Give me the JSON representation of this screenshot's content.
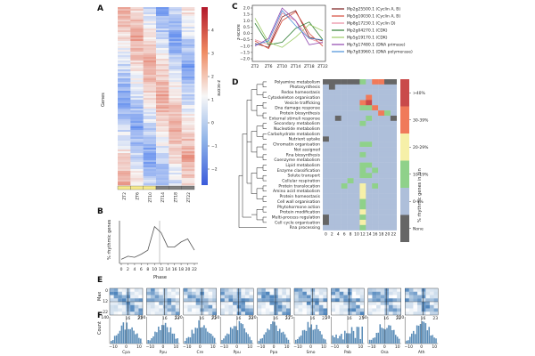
{
  "panels": {
    "A": "A",
    "B": "B",
    "C": "C",
    "D": "D",
    "E": "E",
    "F": "F"
  },
  "colors": {
    "heat_high": "#c0272d",
    "heat_low": "#3b5bdb",
    "mid": "#f7f7f7",
    "yellow": "#f5e98a",
    "grey": "#7f7f7f",
    "none": "#666666",
    "bin0": "#aebfda",
    "bin1": "#8fd18a",
    "bin2": "#f6f0a8",
    "bin3": "#f07a5a",
    "bin4": "#c94a4a",
    "line": "#555555",
    "hist": "#5b8db8",
    "mapblue": "#2f6fb0"
  },
  "panelA": {
    "ylabel": "Genes",
    "colorbar_label": "z-score",
    "colorbar_ticks": [
      "4",
      "3",
      "2",
      "1",
      "0",
      "−1",
      "−2"
    ],
    "xticks": [
      "ZT2",
      "ZT6",
      "ZT10",
      "ZT14",
      "ZT18",
      "ZT22"
    ]
  },
  "panelB": {
    "ylabel": "% rhythmic genes",
    "xlabel": "Phase",
    "xticks": [
      "0",
      "2",
      "4",
      "6",
      "8",
      "10",
      "12",
      "14",
      "16",
      "18",
      "20",
      "22"
    ],
    "chart_data": {
      "type": "line",
      "x": [
        0,
        2,
        4,
        6,
        8,
        10,
        12,
        14,
        16,
        18,
        20,
        22
      ],
      "values": [
        2.0,
        3.5,
        3.0,
        4.5,
        6.5,
        18,
        15,
        8,
        8,
        10.5,
        12,
        6.5
      ],
      "ylim": [
        0,
        20
      ],
      "title": "",
      "xlabel": "Phase",
      "ylabel": "% rhythmic genes"
    }
  },
  "panelC": {
    "ylabel": "z-score",
    "yticks": [
      "2.0",
      "1.5",
      "1.0",
      "0.5",
      "0.0",
      "−0.5",
      "−1.0",
      "−1.5",
      "−2.0"
    ],
    "xticks": [
      "ZT2",
      "ZT6",
      "ZT10",
      "ZT14",
      "ZT18",
      "ZT22"
    ],
    "chart_data": {
      "type": "line",
      "categories": [
        "ZT2",
        "ZT6",
        "ZT10",
        "ZT14",
        "ZT18",
        "ZT22"
      ],
      "ylim": [
        -2.0,
        2.0
      ],
      "series": [
        {
          "name": "Mp2g25500.1 (Cyclin A, B)",
          "color": "#7a1c1c",
          "values": [
            -0.8,
            -1.1,
            1.3,
            1.8,
            -0.3,
            -0.6
          ]
        },
        {
          "name": "Mp5g10030.1 (Cyclin A, B)",
          "color": "#d44a3a",
          "values": [
            -0.6,
            -1.2,
            1.0,
            1.7,
            0.0,
            -1.0
          ]
        },
        {
          "name": "Mp8g17230.1 (Cyclin D)",
          "color": "#e88aa0",
          "values": [
            -0.5,
            -0.9,
            1.6,
            1.0,
            -0.4,
            -0.8
          ]
        },
        {
          "name": "Mp2g04270.1 (CDK)",
          "color": "#2e7d32",
          "values": [
            0.8,
            -0.9,
            -0.7,
            0.4,
            0.9,
            -0.5
          ]
        },
        {
          "name": "Mp5g19170.1 (CDK)",
          "color": "#9ccc65",
          "values": [
            1.2,
            -0.7,
            -1.1,
            -0.3,
            0.7,
            0.2
          ]
        },
        {
          "name": "Mp7g17480.1 (DNA primase)",
          "color": "#8e44ad",
          "values": [
            -1.0,
            -0.4,
            2.0,
            1.0,
            -0.9,
            -0.7
          ]
        },
        {
          "name": "Mp7g03960.1 (DNA polymerase)",
          "color": "#4a90d9",
          "values": [
            -0.9,
            -0.6,
            1.8,
            0.6,
            -0.4,
            -0.5
          ]
        }
      ]
    }
  },
  "panelD": {
    "xticks": [
      "0",
      "2",
      "4",
      "6",
      "8",
      "10",
      "12",
      "14",
      "16",
      "18",
      "20",
      "22"
    ],
    "categories": [
      "Polyamine metabolism",
      "Photosynthesis",
      "Redox homeostasis",
      "Cytoskeleton organisation",
      "Vesicle trafficking",
      "Dna damage response",
      "Protein biosynthesis",
      "External stimuli response",
      "Secondary metabolism",
      "Nucleotide metabolism",
      "Carbohydrate metabolism",
      "Nutrient uptake",
      "Chromatin organisation",
      "Not assigned",
      "Rna biosynthesis",
      "Coenzyme metabolism",
      "Lipid metabolism",
      "Enzyme classification",
      "Solute transport",
      "Cellular respiration",
      "Protein translocation",
      "Amino acid metabolism",
      "Protein homeostasis",
      "Cell wall organisation",
      "Phytohormone action",
      "Protein modification",
      "Multi-process regulation",
      "Cell cycle organisation",
      "Rna processing"
    ],
    "legend": {
      "title": "% rhythmic genes in bin",
      "labels": [
        ">40%",
        "30-39%",
        "20-29%",
        "10-19%",
        "0-9%",
        "None"
      ]
    },
    "grid": [
      [
        5,
        5,
        5,
        5,
        5,
        5,
        1,
        0,
        3,
        3,
        5,
        5
      ],
      [
        0,
        5,
        0,
        0,
        0,
        0,
        0,
        0,
        0,
        0,
        0,
        0
      ],
      [
        0,
        0,
        0,
        0,
        0,
        0,
        0,
        0,
        0,
        0,
        0,
        0
      ],
      [
        0,
        0,
        0,
        0,
        0,
        0,
        0,
        3,
        0,
        0,
        0,
        0
      ],
      [
        0,
        0,
        0,
        0,
        0,
        0,
        3,
        4,
        0,
        0,
        0,
        0
      ],
      [
        0,
        0,
        0,
        0,
        0,
        0,
        1,
        1,
        3,
        0,
        0,
        0
      ],
      [
        0,
        0,
        0,
        0,
        0,
        0,
        0,
        0,
        0,
        3,
        1,
        0
      ],
      [
        0,
        0,
        5,
        0,
        0,
        0,
        0,
        1,
        0,
        0,
        0,
        5
      ],
      [
        0,
        0,
        0,
        0,
        0,
        0,
        1,
        0,
        0,
        0,
        0,
        0
      ],
      [
        0,
        0,
        0,
        0,
        0,
        0,
        0,
        0,
        0,
        0,
        0,
        0
      ],
      [
        0,
        0,
        0,
        0,
        0,
        0,
        0,
        0,
        0,
        0,
        0,
        0
      ],
      [
        5,
        0,
        0,
        0,
        0,
        0,
        0,
        0,
        0,
        0,
        0,
        0
      ],
      [
        0,
        0,
        0,
        0,
        0,
        0,
        1,
        1,
        0,
        0,
        0,
        0
      ],
      [
        0,
        0,
        0,
        0,
        0,
        0,
        0,
        0,
        0,
        0,
        0,
        0
      ],
      [
        0,
        0,
        0,
        0,
        0,
        0,
        1,
        0,
        0,
        0,
        0,
        0
      ],
      [
        0,
        0,
        0,
        0,
        0,
        0,
        0,
        0,
        0,
        0,
        0,
        0
      ],
      [
        0,
        0,
        0,
        0,
        0,
        0,
        1,
        1,
        0,
        0,
        0,
        0
      ],
      [
        0,
        0,
        0,
        0,
        0,
        0,
        1,
        0,
        1,
        0,
        0,
        0
      ],
      [
        0,
        0,
        0,
        0,
        0,
        0,
        1,
        1,
        0,
        0,
        0,
        0
      ],
      [
        0,
        0,
        0,
        0,
        1,
        0,
        0,
        0,
        0,
        0,
        0,
        0
      ],
      [
        0,
        0,
        0,
        1,
        0,
        0,
        2,
        0,
        1,
        0,
        0,
        0
      ],
      [
        0,
        0,
        0,
        0,
        0,
        0,
        2,
        0,
        0,
        0,
        0,
        0
      ],
      [
        0,
        0,
        0,
        0,
        0,
        0,
        2,
        0,
        0,
        0,
        0,
        0
      ],
      [
        0,
        0,
        0,
        0,
        0,
        0,
        1,
        0,
        0,
        0,
        0,
        0
      ],
      [
        0,
        0,
        0,
        0,
        0,
        0,
        1,
        0,
        0,
        0,
        0,
        0
      ],
      [
        0,
        0,
        0,
        0,
        0,
        0,
        2,
        0,
        0,
        0,
        0,
        0
      ],
      [
        5,
        0,
        0,
        0,
        0,
        0,
        1,
        0,
        0,
        0,
        0,
        0
      ],
      [
        5,
        0,
        0,
        0,
        0,
        0,
        2,
        0,
        0,
        0,
        0,
        0
      ],
      [
        0,
        0,
        0,
        0,
        0,
        0,
        1,
        0,
        0,
        0,
        0,
        0
      ]
    ]
  },
  "panelE": {
    "ylabel": "Max",
    "yticks": [
      "0",
      "12",
      "22"
    ],
    "xticks": [
      "0",
      "16",
      "23"
    ]
  },
  "panelF": {
    "ylabel": "Count",
    "xticks": [
      "−10",
      "0",
      "10"
    ],
    "species": [
      {
        "name": "Cpa",
        "ymax": "140"
      },
      {
        "name": "Ppu",
        "ymax": "200"
      },
      {
        "name": "Cre",
        "ymax": "120"
      },
      {
        "name": "Ppu",
        "ymax": "250"
      },
      {
        "name": "Ppa",
        "ymax": "120"
      },
      {
        "name": "Smo",
        "ymax": "175"
      },
      {
        "name": "Pab",
        "ymax": "10"
      },
      {
        "name": "Osa",
        "ymax": "60"
      },
      {
        "name": "Ath",
        "ymax": "120"
      }
    ]
  }
}
